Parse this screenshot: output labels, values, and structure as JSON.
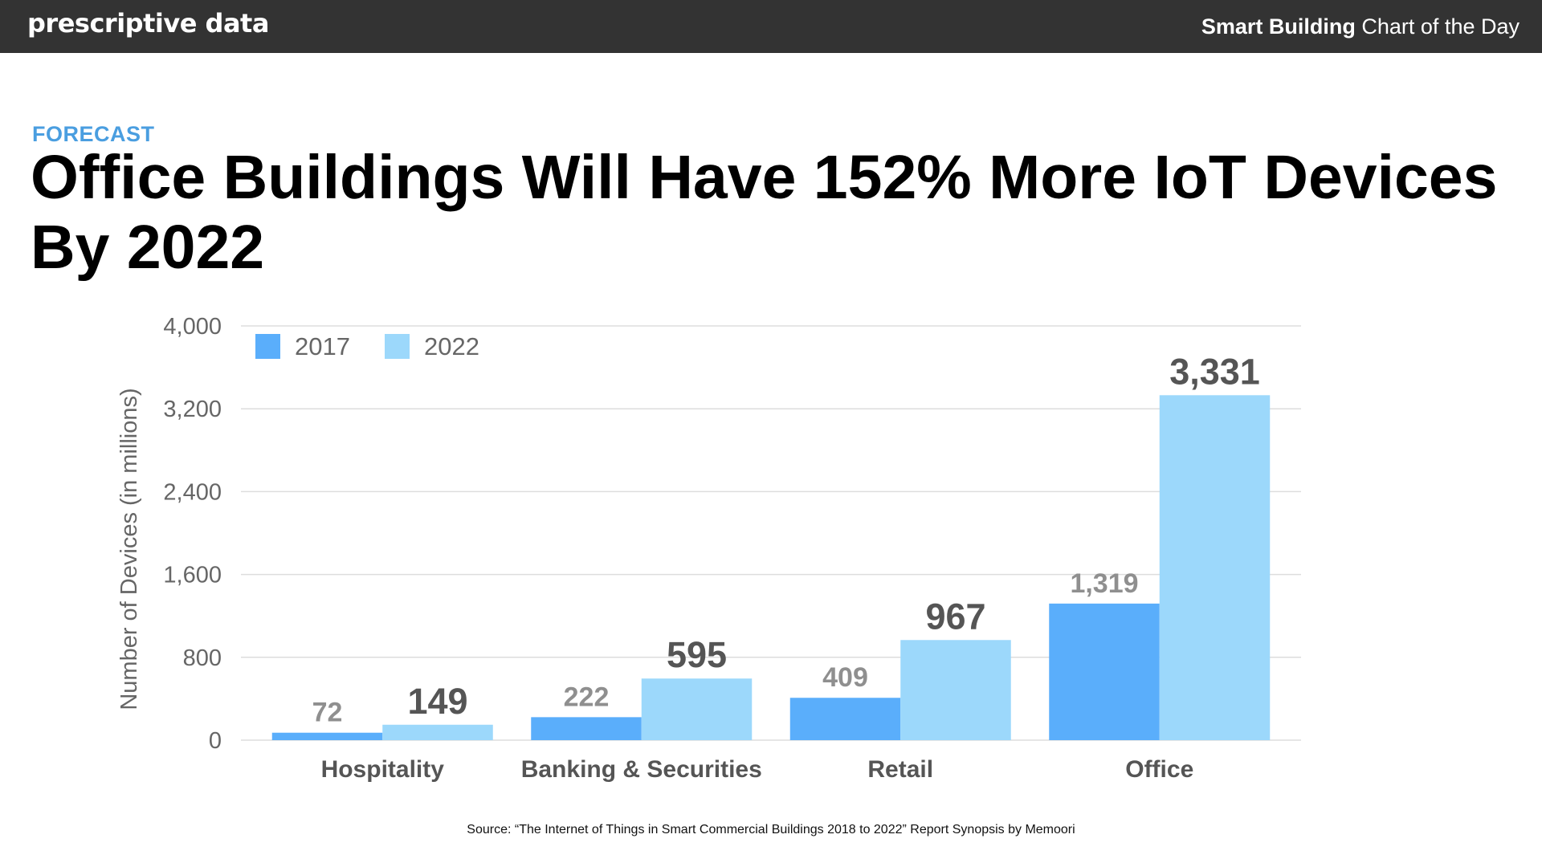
{
  "header": {
    "brand": "prescriptive data",
    "tagline_bold": "Smart Building",
    "tagline_rest": " Chart of the Day"
  },
  "kicker": "FORECAST",
  "title": "Office Buildings Will Have 152% More IoT Devices By 2022",
  "source": "Source: “The Internet of Things in Smart Commercial Buildings 2018 to 2022” Report Synopsis by Memoori",
  "colors": {
    "kicker": "#4a9ee0",
    "series_2017": "#5aaefb",
    "series_2022": "#9cd8fb",
    "label_2017": "#8f8f8f",
    "label_2022": "#555555",
    "axis_text": "#666666",
    "category_text": "#555555",
    "grid": "#dddddd"
  },
  "chart_data": {
    "type": "bar",
    "categories": [
      "Hospitality",
      "Banking & Securities",
      "Retail",
      "Office"
    ],
    "series": [
      {
        "name": "2017",
        "values": [
          72,
          222,
          409,
          1319
        ],
        "labels": [
          "72",
          "222",
          "409",
          "1,319"
        ]
      },
      {
        "name": "2022",
        "values": [
          149,
          595,
          967,
          3331
        ],
        "labels": [
          "149",
          "595",
          "967",
          "3,331"
        ]
      }
    ],
    "ylabel": "Number of Devices (in millions)",
    "ylim": [
      0,
      4000
    ],
    "yticks": [
      0,
      800,
      1600,
      2400,
      3200,
      4000
    ],
    "ytick_labels": [
      "0",
      "800",
      "1,600",
      "2,400",
      "3,200",
      "4,000"
    ],
    "grid": true,
    "legend": "top-left"
  }
}
